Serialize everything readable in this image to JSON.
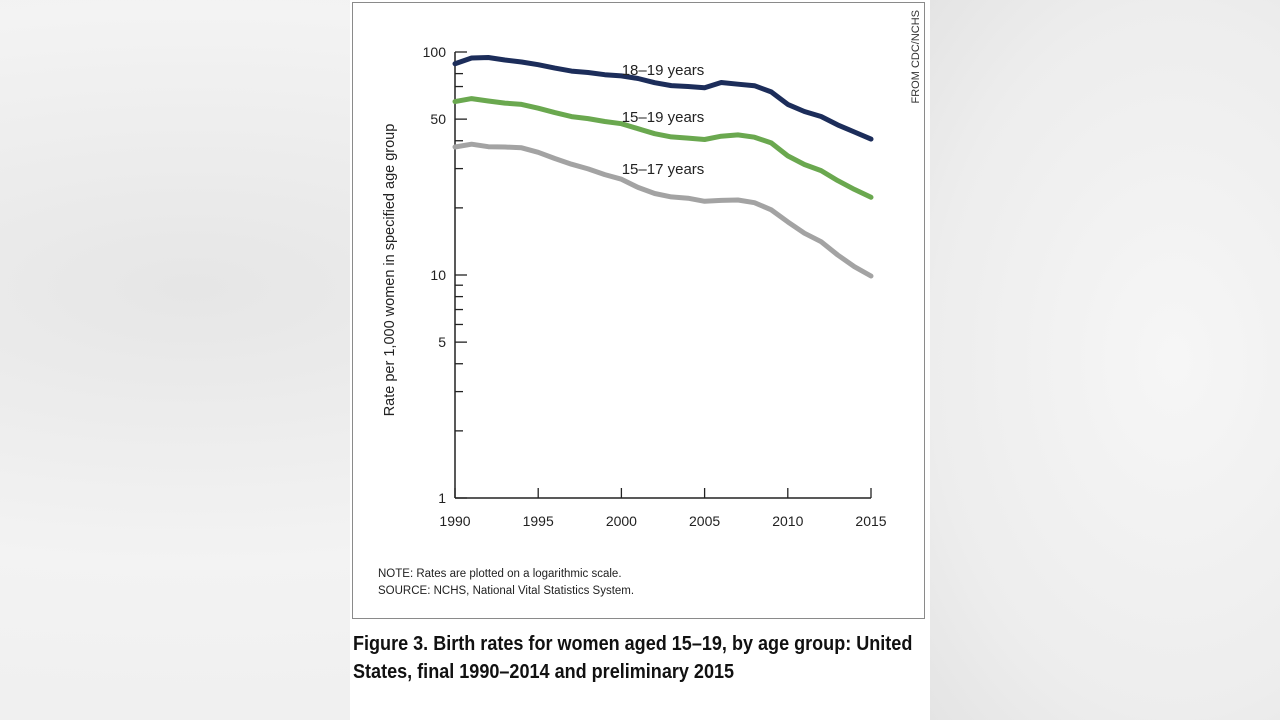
{
  "credit": "FROM CDC/NCHS",
  "note": "NOTE: Rates are plotted on a logarithmic scale.",
  "source": "SOURCE: NCHS, National Vital Statistics System.",
  "caption": "Figure 3. Birth rates for women aged 15–19, by age group: United States, final 1990–2014 and preliminary 2015",
  "chart_data": {
    "type": "line",
    "title": "",
    "xlabel": "",
    "ylabel": "Rate per 1,000 women in specified age group",
    "yscale": "log",
    "xlim": [
      1990,
      2015
    ],
    "ylim": [
      1,
      100
    ],
    "grid": false,
    "xticks": [
      "1990",
      "1995",
      "2000",
      "2005",
      "2010",
      "2015"
    ],
    "yticks": [
      "1",
      "5",
      "10",
      "50",
      "100"
    ],
    "x": [
      1990,
      1991,
      1992,
      1993,
      1994,
      1995,
      1996,
      1997,
      1998,
      1999,
      2000,
      2001,
      2002,
      2003,
      2004,
      2005,
      2006,
      2007,
      2008,
      2009,
      2010,
      2011,
      2012,
      2013,
      2014,
      2015
    ],
    "series": [
      {
        "name": "18–19 years",
        "color": "#1c2d5a",
        "values": [
          88.6,
          94.0,
          94.5,
          92.1,
          90.2,
          87.7,
          84.7,
          82.1,
          80.9,
          79.1,
          78.1,
          76.1,
          72.8,
          70.7,
          70.0,
          69.2,
          73.0,
          71.7,
          70.6,
          66.2,
          58.2,
          54.1,
          51.4,
          47.1,
          43.8,
          40.7
        ]
      },
      {
        "name": "15–19 years",
        "color": "#6aa84f",
        "values": [
          59.9,
          61.8,
          60.3,
          59.0,
          58.2,
          56.0,
          53.5,
          51.3,
          50.3,
          48.8,
          47.7,
          45.3,
          43.0,
          41.6,
          41.1,
          40.5,
          41.9,
          42.5,
          41.5,
          39.1,
          34.2,
          31.3,
          29.4,
          26.5,
          24.2,
          22.3
        ]
      },
      {
        "name": "15–17 years",
        "color": "#a3a3a3",
        "values": [
          37.5,
          38.6,
          37.6,
          37.5,
          37.2,
          35.5,
          33.3,
          31.4,
          29.9,
          28.2,
          26.9,
          24.7,
          23.2,
          22.4,
          22.1,
          21.4,
          21.6,
          21.7,
          21.1,
          19.6,
          17.3,
          15.4,
          14.1,
          12.3,
          10.9,
          9.9
        ]
      }
    ]
  }
}
